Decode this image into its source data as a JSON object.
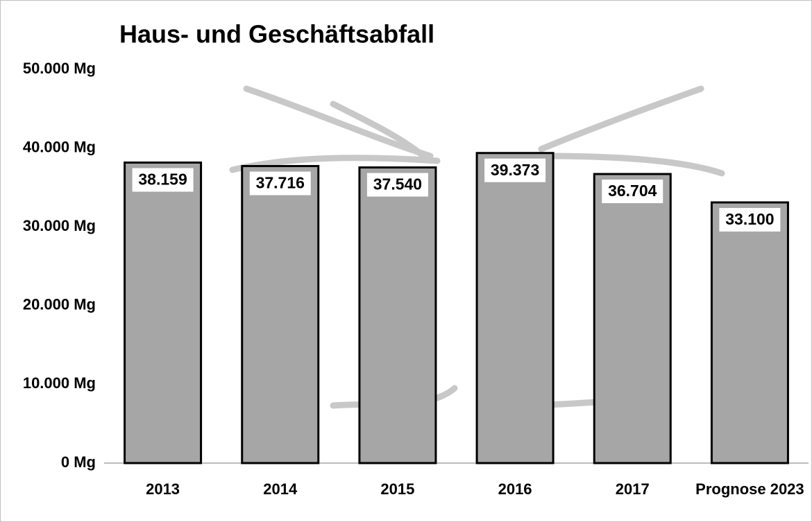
{
  "chart_data": {
    "type": "bar",
    "title": "Haus- und Geschäftsabfall",
    "categories": [
      "2013",
      "2014",
      "2015",
      "2016",
      "2017",
      "Prognose 2023"
    ],
    "values": [
      38159,
      37716,
      37540,
      39373,
      36704,
      33100
    ],
    "value_labels": [
      "38.159",
      "37.716",
      "37.540",
      "39.373",
      "36.704",
      "33.100"
    ],
    "color": "#a6a6a6",
    "ylim": [
      0,
      50000
    ],
    "yticks": [
      {
        "value": 0,
        "label": "0 Mg"
      },
      {
        "value": 10000,
        "label": "10.000 Mg"
      },
      {
        "value": 20000,
        "label": "20.000 Mg"
      },
      {
        "value": 30000,
        "label": "30.000 Mg"
      },
      {
        "value": 40000,
        "label": "40.000 Mg"
      },
      {
        "value": 50000,
        "label": "50.000 Mg"
      }
    ],
    "grid": false
  }
}
